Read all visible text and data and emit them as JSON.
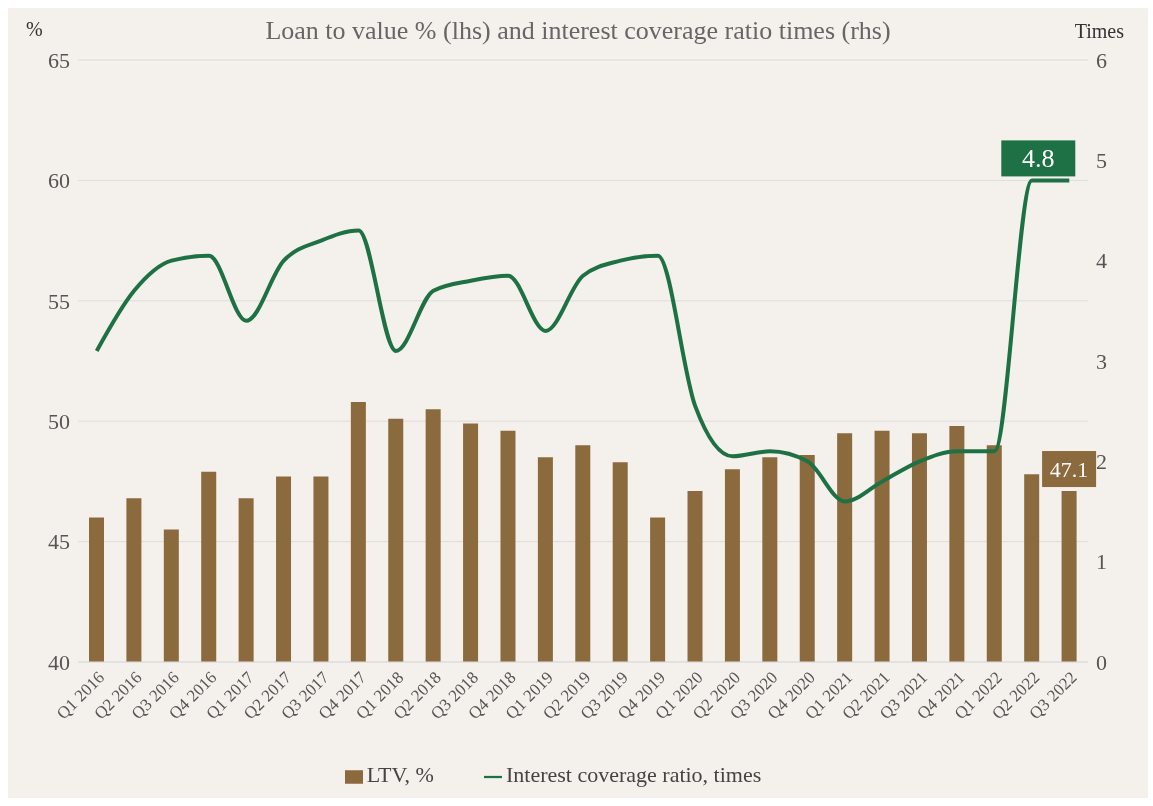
{
  "chart_data": {
    "type": "bar",
    "title": "Loan to value % (lhs) and interest coverage ratio times (rhs)",
    "ylabel": "%",
    "y2label": "Times",
    "categories": [
      "Q1 2016",
      "Q2 2016",
      "Q3 2016",
      "Q4 2016",
      "Q1 2017",
      "Q2 2017",
      "Q3 2017",
      "Q4 2017",
      "Q1 2018",
      "Q2 2018",
      "Q3 2018",
      "Q4 2018",
      "Q1 2019",
      "Q2 2019",
      "Q3 2019",
      "Q4 2019",
      "Q1 2020",
      "Q2 2020",
      "Q3 2020",
      "Q4 2020",
      "Q1 2021",
      "Q2 2021",
      "Q3 2021",
      "Q4 2021",
      "Q1 2022",
      "Q2 2022",
      "Q3 2022"
    ],
    "series": [
      {
        "name": "LTV, %",
        "color": "#8b6a3e",
        "values": [
          46.0,
          46.8,
          45.5,
          47.9,
          46.8,
          47.7,
          47.7,
          50.8,
          50.1,
          50.5,
          49.9,
          49.6,
          48.5,
          49.0,
          48.3,
          46.0,
          47.1,
          48.0,
          48.5,
          48.6,
          49.5,
          49.6,
          49.5,
          49.8,
          49.0,
          47.8,
          47.1
        ],
        "value_labels": [
          null,
          null,
          null,
          null,
          null,
          null,
          null,
          null,
          null,
          null,
          null,
          null,
          null,
          null,
          null,
          null,
          null,
          null,
          null,
          null,
          null,
          null,
          null,
          null,
          null,
          null,
          "47.1"
        ]
      },
      {
        "name": "Interest coverage ratio, times",
        "type": "line",
        "axis": "y2",
        "color": "#1e7145",
        "values": [
          3.1,
          3.7,
          4.0,
          4.05,
          3.4,
          4.0,
          4.2,
          4.3,
          3.1,
          3.7,
          3.8,
          3.85,
          3.3,
          3.85,
          4.0,
          4.05,
          2.55,
          2.05,
          2.1,
          2.0,
          1.6,
          1.8,
          2.0,
          2.1,
          2.1,
          4.8,
          4.8
        ],
        "value_labels": [
          null,
          null,
          null,
          null,
          null,
          null,
          null,
          null,
          null,
          null,
          null,
          null,
          null,
          null,
          null,
          null,
          null,
          null,
          null,
          null,
          null,
          null,
          null,
          null,
          null,
          null,
          "4.8"
        ]
      }
    ],
    "ylim": [
      40,
      65
    ],
    "yticks": [
      40,
      45,
      50,
      55,
      60,
      65
    ],
    "y2lim": [
      0,
      6
    ],
    "y2ticks": [
      0,
      1,
      2,
      3,
      4,
      5,
      6
    ],
    "grid": "y",
    "legend": "bottom",
    "marker": "none",
    "line_style": "solid"
  }
}
